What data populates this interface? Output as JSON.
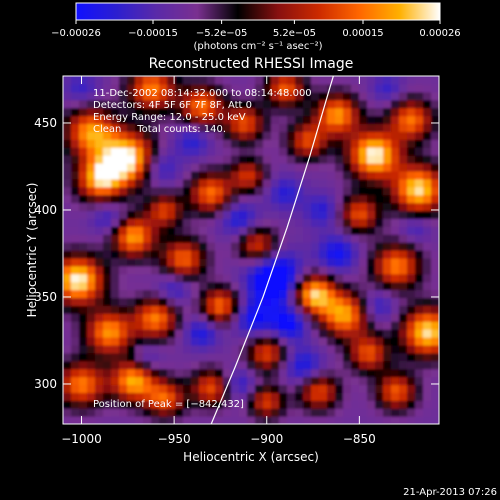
{
  "chart_data": {
    "type": "heatmap",
    "title": "Reconstructed RHESSI Image",
    "xlabel": "Heliocentric X (arcsec)",
    "ylabel": "Heliocentric Y (arcsec)",
    "xlim": [
      -1010,
      -807
    ],
    "ylim": [
      277,
      477
    ],
    "x_ticks": [
      -1000,
      -950,
      -900,
      -850
    ],
    "x_tick_labels": [
      "−1000",
      "−950",
      "−900",
      "−850"
    ],
    "y_ticks": [
      300,
      350,
      400,
      450
    ],
    "y_tick_labels": [
      "300",
      "350",
      "400",
      "450"
    ],
    "info_lines": [
      "11-Dec-2002 08:14:32.000 to 08:14:48.000",
      "Detectors: 4F 5F 6F 7F 8F, Att 0",
      "Energy Range: 12.0 - 25.0 keV",
      "Clean     Total counts: 140."
    ],
    "peak_label": "Position of Peak = [−842,432]",
    "peak_position": [
      -842,
      432
    ],
    "colorbar": {
      "range": [
        -0.00026,
        0.00026
      ],
      "tick_values": [
        -0.00026,
        -0.00015,
        -5.2e-05,
        5.2e-05,
        0.00015,
        0.00026
      ],
      "tick_labels": [
        "−0.00026",
        "−0.00015",
        "−5.2e−05",
        "5.2e−05",
        "0.00015",
        "0.00026"
      ],
      "unit_label": "(photons cm⁻² s⁻¹ asec⁻²)",
      "colors": [
        "#1010ff",
        "#2c1fd0",
        "#5a2aa8",
        "#7a3090",
        "#000000",
        "#881010",
        "#cc2a00",
        "#ff6600",
        "#ffb000",
        "#ffffff"
      ]
    },
    "limb_curve": [
      [
        -930,
        277
      ],
      [
        -917,
        310
      ],
      [
        -902,
        350
      ],
      [
        -889,
        390
      ],
      [
        -877,
        430
      ],
      [
        -866,
        470
      ],
      [
        -864,
        477
      ]
    ],
    "blobs": [
      {
        "x": -995,
        "y": 445,
        "r": 13,
        "v": 0.00018
      },
      {
        "x": -975,
        "y": 430,
        "r": 14,
        "v": 0.00026
      },
      {
        "x": -990,
        "y": 418,
        "r": 12,
        "v": 0.0002
      },
      {
        "x": -962,
        "y": 470,
        "r": 12,
        "v": 0.00016
      },
      {
        "x": -935,
        "y": 460,
        "r": 11,
        "v": 0.00015
      },
      {
        "x": -912,
        "y": 450,
        "r": 10,
        "v": 0.00012
      },
      {
        "x": -890,
        "y": 470,
        "r": 10,
        "v": 0.00013
      },
      {
        "x": -878,
        "y": 440,
        "r": 10,
        "v": 0.00011
      },
      {
        "x": -862,
        "y": 455,
        "r": 11,
        "v": 0.00018
      },
      {
        "x": -842,
        "y": 432,
        "r": 13,
        "v": 0.00026
      },
      {
        "x": -822,
        "y": 452,
        "r": 11,
        "v": 0.00015
      },
      {
        "x": -818,
        "y": 412,
        "r": 13,
        "v": 0.00024
      },
      {
        "x": -850,
        "y": 398,
        "r": 10,
        "v": 0.00012
      },
      {
        "x": -830,
        "y": 368,
        "r": 12,
        "v": 0.00016
      },
      {
        "x": -813,
        "y": 330,
        "r": 13,
        "v": 0.00024
      },
      {
        "x": -858,
        "y": 340,
        "r": 12,
        "v": 0.00019
      },
      {
        "x": -875,
        "y": 352,
        "r": 11,
        "v": 0.00024
      },
      {
        "x": -845,
        "y": 318,
        "r": 10,
        "v": 0.00012
      },
      {
        "x": -830,
        "y": 296,
        "r": 10,
        "v": 0.00013
      },
      {
        "x": -872,
        "y": 296,
        "r": 10,
        "v": 0.00012
      },
      {
        "x": -900,
        "y": 318,
        "r": 10,
        "v": 0.00011
      },
      {
        "x": -925,
        "y": 345,
        "r": 10,
        "v": 0.00015
      },
      {
        "x": -905,
        "y": 380,
        "r": 10,
        "v": 0.00011
      },
      {
        "x": -945,
        "y": 372,
        "r": 11,
        "v": 0.00014
      },
      {
        "x": -930,
        "y": 410,
        "r": 11,
        "v": 0.00015
      },
      {
        "x": -955,
        "y": 400,
        "r": 9,
        "v": 0.0001
      },
      {
        "x": -972,
        "y": 385,
        "r": 11,
        "v": 0.00019
      },
      {
        "x": -1002,
        "y": 360,
        "r": 13,
        "v": 0.00026
      },
      {
        "x": -985,
        "y": 330,
        "r": 12,
        "v": 0.00018
      },
      {
        "x": -960,
        "y": 338,
        "r": 11,
        "v": 0.00016
      },
      {
        "x": -1000,
        "y": 300,
        "r": 12,
        "v": 0.00016
      },
      {
        "x": -972,
        "y": 302,
        "r": 11,
        "v": 0.0002
      },
      {
        "x": -955,
        "y": 292,
        "r": 10,
        "v": 0.00013
      },
      {
        "x": -930,
        "y": 298,
        "r": 10,
        "v": 0.00012
      },
      {
        "x": -900,
        "y": 290,
        "r": 9,
        "v": 0.0001
      },
      {
        "x": -910,
        "y": 420,
        "r": 9,
        "v": 9e-05
      },
      {
        "x": -890,
        "y": 410,
        "r": 9,
        "v": -0.0001
      },
      {
        "x": -895,
        "y": 360,
        "r": 14,
        "v": -0.00024
      },
      {
        "x": -888,
        "y": 335,
        "r": 10,
        "v": -0.00016
      },
      {
        "x": -908,
        "y": 338,
        "r": 10,
        "v": -0.00014
      },
      {
        "x": -915,
        "y": 395,
        "r": 10,
        "v": -0.00012
      },
      {
        "x": -935,
        "y": 330,
        "r": 9,
        "v": -0.00012
      },
      {
        "x": -950,
        "y": 355,
        "r": 9,
        "v": -0.0001
      },
      {
        "x": -958,
        "y": 425,
        "r": 10,
        "v": -0.00012
      },
      {
        "x": -940,
        "y": 440,
        "r": 9,
        "v": -0.0001
      },
      {
        "x": -870,
        "y": 400,
        "r": 9,
        "v": -0.0001
      },
      {
        "x": -862,
        "y": 375,
        "r": 10,
        "v": -0.00014
      },
      {
        "x": -840,
        "y": 345,
        "r": 9,
        "v": -0.0001
      },
      {
        "x": -880,
        "y": 310,
        "r": 10,
        "v": -0.00013
      },
      {
        "x": -915,
        "y": 300,
        "r": 9,
        "v": -0.0001
      },
      {
        "x": -985,
        "y": 395,
        "r": 9,
        "v": -0.0001
      },
      {
        "x": -1000,
        "y": 470,
        "r": 9,
        "v": -8e-05
      },
      {
        "x": -820,
        "y": 390,
        "r": 8,
        "v": -8e-05
      },
      {
        "x": -835,
        "y": 470,
        "r": 8,
        "v": -8e-05
      },
      {
        "x": -965,
        "y": 315,
        "r": 8,
        "v": -8e-05
      }
    ]
  },
  "footer": {
    "timestamp": "21-Apr-2013 07:26"
  }
}
